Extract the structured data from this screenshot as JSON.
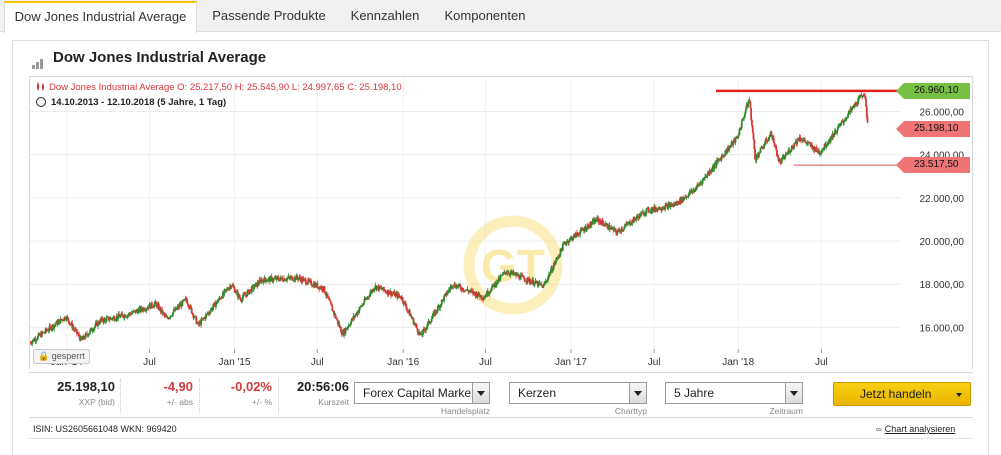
{
  "tabs": [
    {
      "label": "Dow Jones Industrial Average",
      "active": true
    },
    {
      "label": "Passende Produkte",
      "active": false
    },
    {
      "label": "Kennzahlen",
      "active": false
    },
    {
      "label": "Komponenten",
      "active": false
    }
  ],
  "header": {
    "title": "Dow Jones Industrial Average",
    "icon": "bar-chart-icon"
  },
  "chart": {
    "ohlc_line": "Dow Jones Industrial Average  O: 25.217,50  H: 25.545,90  L: 24.997,65  C: 25.198,10",
    "range_line": "14.10.2013 - 12.10.2018   (5 Jahre, 1 Tag)",
    "locked_label": "gesperrt",
    "watermark": "GT",
    "price_tags": {
      "high": "26.960,10",
      "current": "25.198,10",
      "low": "23.517,50"
    },
    "colors": {
      "up": "#2a8a2a",
      "down": "#d93636",
      "tag_high": "#76c043",
      "tag_red": "#f07474",
      "line_high": "#e02020"
    }
  },
  "chart_data": {
    "type": "candlestick",
    "title": "Dow Jones Industrial Average",
    "y_ticks": [
      "16.000,00",
      "18.000,00",
      "20.000,00",
      "22.000,00",
      "24.000,00",
      "26.000,00"
    ],
    "ylim": [
      15000,
      27600
    ],
    "x_ticks": [
      "Jan '14",
      "Jul",
      "Jan '15",
      "Jul",
      "Jan '16",
      "Jul",
      "Jan '17",
      "Jul",
      "Jan '18",
      "Jul"
    ],
    "series": [
      {
        "name": "Dow Jones Industrial Average",
        "anchors": [
          [
            "2013-10-14",
            15300
          ],
          [
            "2013-12-31",
            16500
          ],
          [
            "2014-02-03",
            15400
          ],
          [
            "2014-03-15",
            16300
          ],
          [
            "2014-05-15",
            16600
          ],
          [
            "2014-07-15",
            17100
          ],
          [
            "2014-08-07",
            16400
          ],
          [
            "2014-09-19",
            17300
          ],
          [
            "2014-10-15",
            16100
          ],
          [
            "2014-12-26",
            18000
          ],
          [
            "2015-01-15",
            17300
          ],
          [
            "2015-03-02",
            18200
          ],
          [
            "2015-05-19",
            18300
          ],
          [
            "2015-07-15",
            17800
          ],
          [
            "2015-08-25",
            15700
          ],
          [
            "2015-11-03",
            17900
          ],
          [
            "2015-12-31",
            17400
          ],
          [
            "2016-02-11",
            15600
          ],
          [
            "2016-04-20",
            18000
          ],
          [
            "2016-06-27",
            17400
          ],
          [
            "2016-08-15",
            18600
          ],
          [
            "2016-11-04",
            17900
          ],
          [
            "2016-12-20",
            19900
          ],
          [
            "2017-03-01",
            21000
          ],
          [
            "2017-04-13",
            20400
          ],
          [
            "2017-06-15",
            21400
          ],
          [
            "2017-08-18",
            21700
          ],
          [
            "2017-09-30",
            22400
          ],
          [
            "2017-12-31",
            24800
          ],
          [
            "2018-01-26",
            26600
          ],
          [
            "2018-02-08",
            23800
          ],
          [
            "2018-03-15",
            25000
          ],
          [
            "2018-04-02",
            23600
          ],
          [
            "2018-05-15",
            24800
          ],
          [
            "2018-06-28",
            24100
          ],
          [
            "2018-08-10",
            25300
          ],
          [
            "2018-10-03",
            26900
          ],
          [
            "2018-10-12",
            25200
          ]
        ]
      }
    ],
    "annotations": {
      "high": 26960.1,
      "current": 25198.1,
      "low": 23517.5
    },
    "grid": true
  },
  "quote": {
    "last": "25.198,10",
    "last_sub": "XXP (bid)",
    "abs": "-4,90",
    "abs_sub": "+/- abs",
    "pct": "-0,02%",
    "pct_sub": "+/- %",
    "time": "20:56:06",
    "time_sub": "Kurszeit"
  },
  "controls": {
    "exchange": {
      "value": "Forex Capital Marke",
      "caption": "Handelsplatz"
    },
    "chart_type": {
      "value": "Kerzen",
      "caption": "Charttyp"
    },
    "period": {
      "value": "5 Jahre",
      "caption": "Zeitraum"
    },
    "trade_button": "Jetzt handeln"
  },
  "footer": {
    "isin": "ISIN: US2605661048 WKN: 969420",
    "analyse_link": "Chart analysieren"
  }
}
